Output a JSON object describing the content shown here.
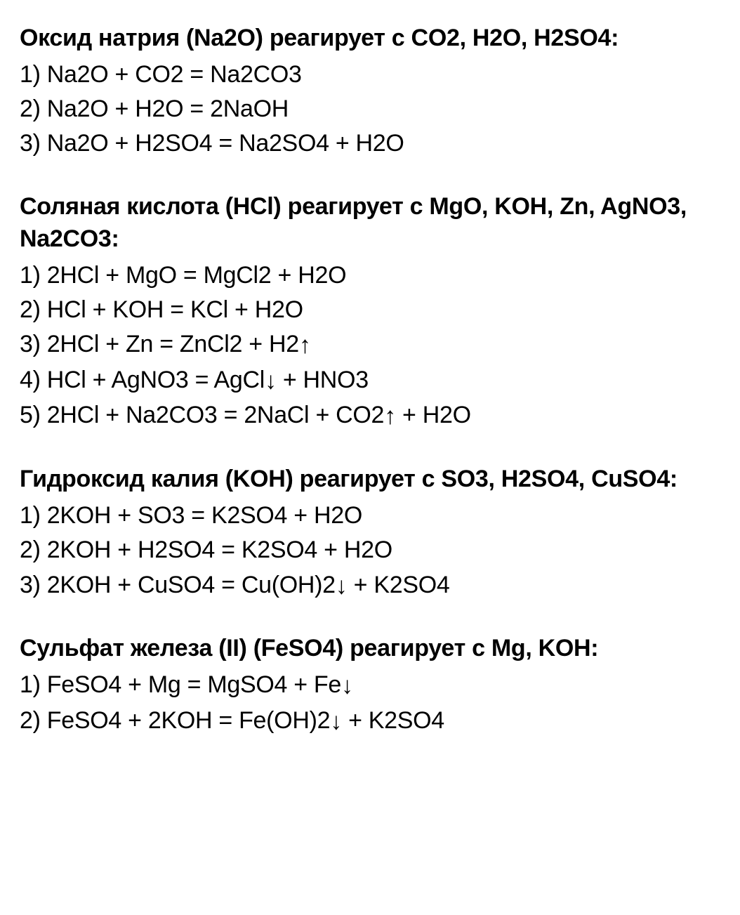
{
  "colors": {
    "text": "#000000",
    "background": "#ffffff"
  },
  "typography": {
    "title_fontsize": 34,
    "title_fontweight": 700,
    "equation_fontsize": 34,
    "equation_fontweight": 400,
    "line_height": 1.45,
    "font_family": "Arial, Helvetica, sans-serif"
  },
  "sections": [
    {
      "title": "Оксид натрия (Na2O) реагирует с CO2, H2O, H2SO4:",
      "equations": [
        "1) Na2O + CO2 = Na2CO3",
        "2) Na2O + H2O = 2NaOH",
        "3) Na2O + H2SO4 = Na2SO4 + H2O"
      ]
    },
    {
      "title": "Соляная кислота (HCl) реагирует с MgO, KOH, Zn, AgNO3, Na2CO3:",
      "equations": [
        "1) 2HCl + MgO = MgCl2 + H2O",
        "2) HCl + KOH = KCl + H2O",
        "3) 2HCl + Zn = ZnCl2 + H2↑",
        "4) HCl + AgNO3 = AgCl↓ + HNO3",
        "5) 2HCl + Na2CO3 = 2NaCl + CO2↑ + H2O"
      ]
    },
    {
      "title": "Гидроксид калия (KOH) реагирует с SO3, H2SO4, CuSO4:",
      "equations": [
        "1) 2KOH + SO3 = K2SO4 + H2O",
        "2) 2KOH + H2SO4 = K2SO4 + H2O",
        "3) 2KOH + CuSO4 = Cu(OH)2↓ + K2SO4"
      ]
    },
    {
      "title": "Сульфат железа (II) (FeSO4) реагирует с Mg, KOH:",
      "equations": [
        "1) FeSO4 + Mg = MgSO4 + Fe↓",
        "2) FeSO4 + 2KOH = Fe(OH)2↓ + K2SO4"
      ]
    }
  ]
}
